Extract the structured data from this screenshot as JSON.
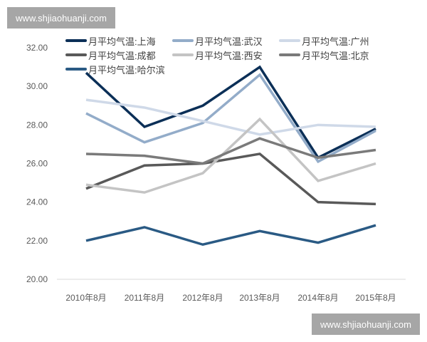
{
  "watermark": "www.shjiaohuanji.com",
  "chart_data": {
    "type": "line",
    "categories": [
      "2010年8月",
      "2011年8月",
      "2012年8月",
      "2013年8月",
      "2014年8月",
      "2015年8月"
    ],
    "ylim": [
      20,
      32
    ],
    "yticks": [
      "20.00",
      "22.00",
      "24.00",
      "26.00",
      "28.00",
      "30.00",
      "32.00"
    ],
    "legend_position": "top",
    "grid": false,
    "series": [
      {
        "name": "月平均气温:上海",
        "color": "#0b2f57",
        "values": [
          30.7,
          27.9,
          29.0,
          31.0,
          26.3,
          27.8
        ]
      },
      {
        "name": "月平均气温:武汉",
        "color": "#93acc9",
        "values": [
          28.6,
          27.1,
          28.1,
          30.6,
          26.1,
          27.7
        ]
      },
      {
        "name": "月平均气温:广州",
        "color": "#cfd9e8",
        "values": [
          29.3,
          28.9,
          28.2,
          27.5,
          28.0,
          27.9
        ]
      },
      {
        "name": "月平均气温:成都",
        "color": "#595959",
        "values": [
          24.7,
          25.9,
          26.0,
          26.5,
          24.0,
          23.9
        ]
      },
      {
        "name": "月平均气温:西安",
        "color": "#c4c4c4",
        "values": [
          24.9,
          24.5,
          25.5,
          28.3,
          25.1,
          26.0
        ]
      },
      {
        "name": "月平均气温:北京",
        "color": "#7a7a7a",
        "values": [
          26.5,
          26.4,
          26.0,
          27.3,
          26.3,
          26.7
        ]
      },
      {
        "name": "月平均气温:哈尔滨",
        "color": "#2a5a84",
        "values": [
          22.0,
          22.7,
          21.8,
          22.5,
          21.9,
          22.8
        ]
      }
    ]
  }
}
